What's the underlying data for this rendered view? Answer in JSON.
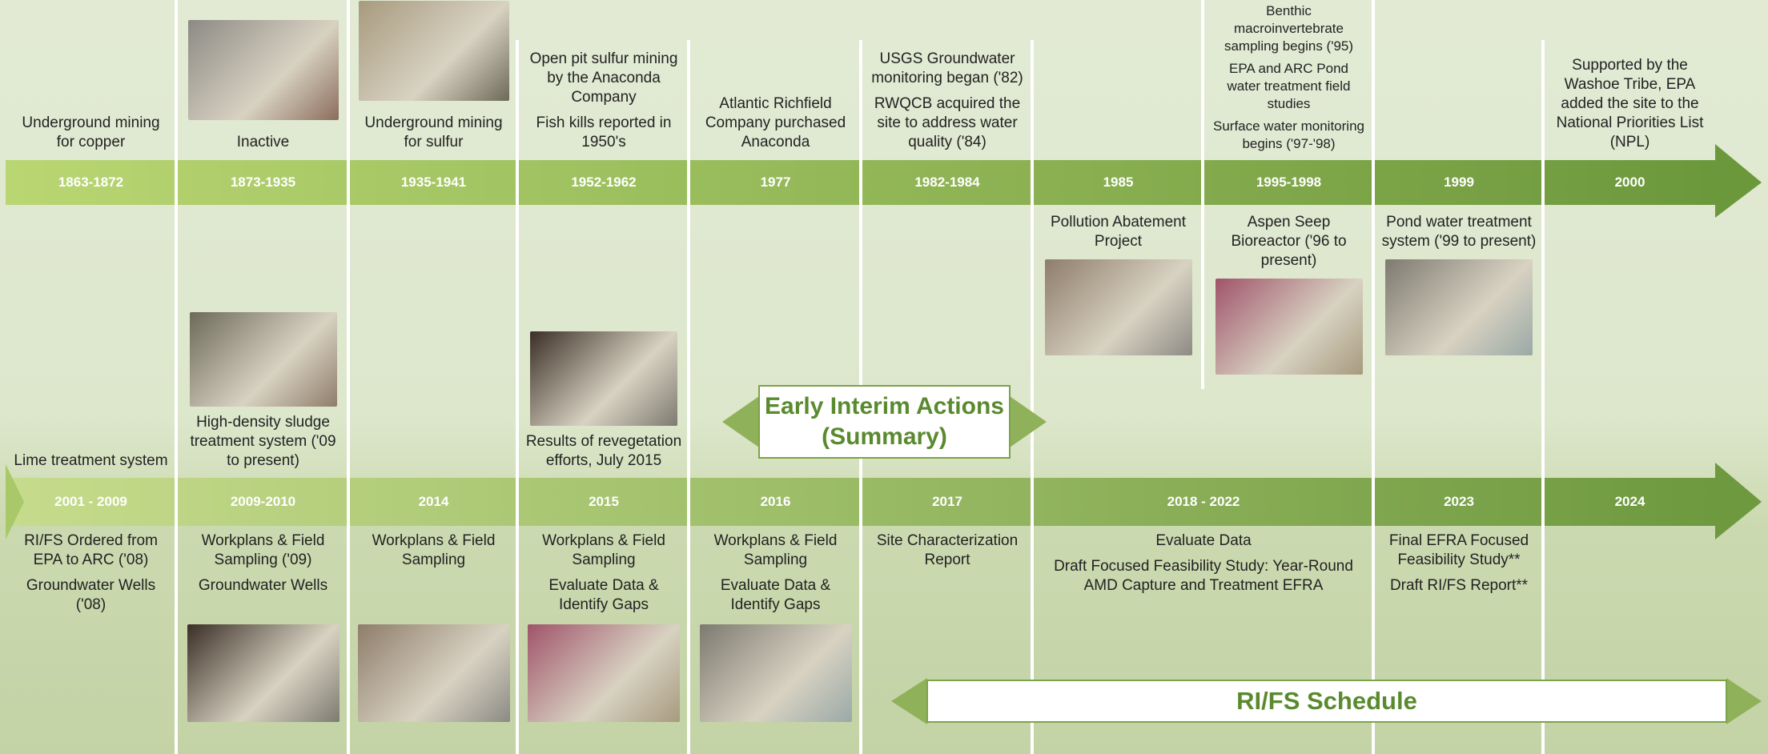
{
  "timeline_top": {
    "periods": [
      {
        "years": "1863-1872",
        "above": [
          "Underground mining for copper"
        ]
      },
      {
        "years": "1873-1935",
        "above": [
          "Inactive"
        ]
      },
      {
        "years": "1935-1941",
        "above": [
          "Underground mining for sulfur"
        ]
      },
      {
        "years": "1952-1962",
        "above": [
          "Open pit sulfur mining by the Anaconda Company",
          "Fish kills reported in 1950's"
        ]
      },
      {
        "years": "1977",
        "above": [
          "Atlantic Richfield Company purchased Anaconda"
        ]
      },
      {
        "years": "1982-1984",
        "above": [
          "USGS Groundwater monitoring began ('82)",
          "RWQCB acquired the site to address water quality ('84)"
        ]
      },
      {
        "years": "1985",
        "below": [
          "Pollution Abatement Project"
        ]
      },
      {
        "years": "1995-1998",
        "above": [
          "Benthic macroinvertebrate sampling begins ('95)",
          "EPA and ARC Pond water treatment field studies",
          "Surface water monitoring begins ('97-'98)"
        ],
        "below": [
          "Aspen Seep Bioreactor ('96 to present)"
        ]
      },
      {
        "years": "1999",
        "below": [
          "Pond water treatment system ('99 to present)"
        ]
      },
      {
        "years": "2000",
        "above": [
          "Supported by the Washoe Tribe, EPA added the site to the National Priorities List (NPL)"
        ]
      }
    ]
  },
  "timeline_bottom": {
    "periods": [
      {
        "years": "2001 - 2009",
        "above": [
          "Lime treatment system"
        ],
        "below": [
          "RI/FS Ordered from EPA to ARC ('08)",
          "Groundwater Wells ('08)"
        ]
      },
      {
        "years": "2009-2010",
        "above": [
          "High-density sludge treatment system ('09 to present)"
        ],
        "below": [
          "Workplans & Field Sampling ('09)",
          "Groundwater Wells"
        ]
      },
      {
        "years": "2014",
        "below": [
          "Workplans & Field Sampling"
        ]
      },
      {
        "years": "2015",
        "above": [
          "Results of revegetation efforts, July 2015"
        ],
        "below": [
          "Workplans & Field Sampling",
          "Evaluate Data & Identify Gaps"
        ]
      },
      {
        "years": "2016",
        "below": [
          "Workplans & Field Sampling",
          "Evaluate Data & Identify Gaps"
        ]
      },
      {
        "years": "2017",
        "below": [
          "Site Characterization Report"
        ]
      },
      {
        "years": "2018 - 2022",
        "below": [
          "Evaluate Data",
          "Draft Focused Feasibility Study: Year-Round AMD Capture and Treatment EFRA"
        ]
      },
      {
        "years": "2023",
        "below": [
          "Final EFRA Focused Feasibility Study**",
          "Draft RI/FS Report**"
        ]
      },
      {
        "years": "2024"
      }
    ]
  },
  "banners": {
    "early_interim": "Early Interim Actions (Summary)",
    "rifs_schedule": "RI/FS Schedule"
  }
}
